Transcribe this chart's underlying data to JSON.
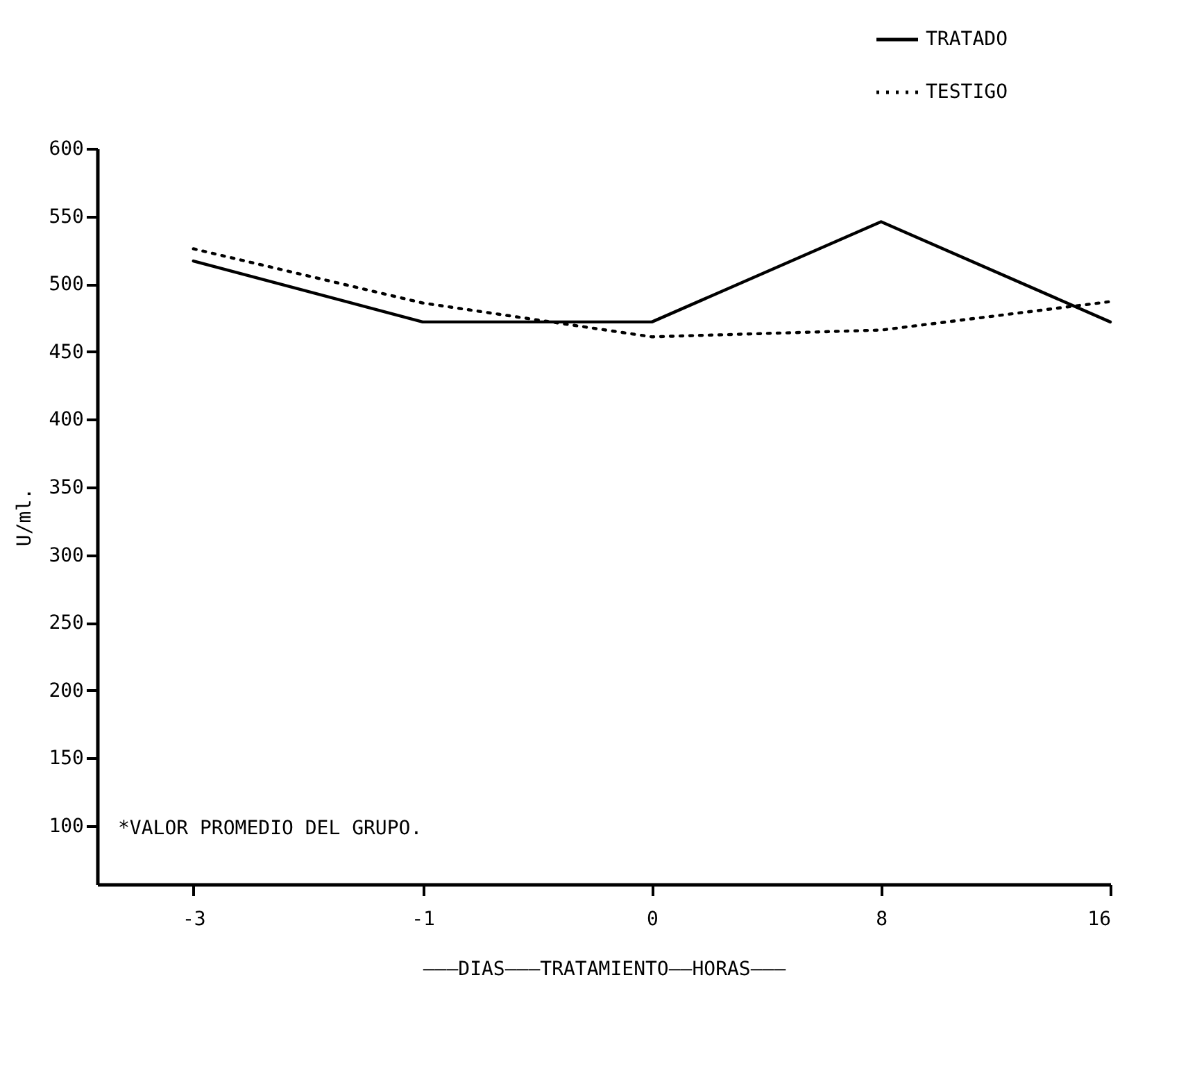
{
  "chart_data": {
    "type": "line",
    "xlabel": "———DIAS———TRATAMIENTO——HORAS———",
    "ylabel": "U/ml.",
    "categories": [
      "-3",
      "-1",
      "0",
      "8",
      "16"
    ],
    "series": [
      {
        "name": "TRATADO",
        "color": "#000000",
        "line_style": "solid",
        "values": [
          517,
          472,
          472,
          546,
          472
        ]
      },
      {
        "name": "TESTIGO",
        "color": "#000000",
        "line_style": "dotted",
        "values": [
          526,
          486,
          461,
          466,
          487
        ]
      }
    ],
    "ylim": [
      57,
      600
    ],
    "yticks": [
      100,
      150,
      200,
      250,
      300,
      350,
      400,
      450,
      500,
      550,
      600
    ],
    "annotations": [
      "*VALOR PROMEDIO DEL GRUPO."
    ],
    "legend": "top right",
    "grid": false,
    "marker": "none"
  }
}
